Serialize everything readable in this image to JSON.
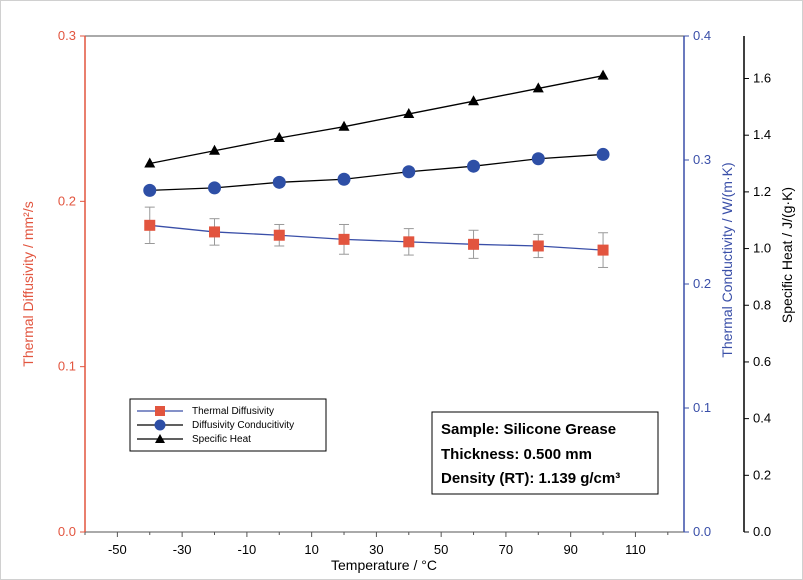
{
  "chart_data": {
    "type": "line",
    "xlabel": "Temperature / °C",
    "x_ticks": [
      "-50",
      "-30",
      "-10",
      "10",
      "30",
      "50",
      "70",
      "90",
      "110"
    ],
    "xlim": [
      -60,
      125
    ],
    "axes": {
      "left": {
        "label": "Thermal Diffusivity / mm²/s",
        "ylim": [
          0,
          0.3
        ],
        "ticks": [
          "0.0",
          "0.1",
          "0.2",
          "0.3"
        ],
        "color": "#e2553f"
      },
      "right1": {
        "label": "Thermal Conductivity / W/(m·K)",
        "ylim": [
          0,
          0.4
        ],
        "ticks": [
          "0.0",
          "0.1",
          "0.2",
          "0.3",
          "0.4"
        ],
        "color": "#3a4fa8"
      },
      "right2": {
        "label": "Specific Heat / J/(g·K)",
        "ylim": [
          0,
          1.75
        ],
        "ticks": [
          "0.0",
          "0.2",
          "0.4",
          "0.6",
          "0.8",
          "1.0",
          "1.2",
          "1.4",
          "1.6"
        ],
        "color": "#000000"
      }
    },
    "x": [
      -40,
      -20,
      0,
      20,
      40,
      60,
      80,
      100
    ],
    "series": [
      {
        "name": "Thermal Diffusivity",
        "axis": "left",
        "marker": "square",
        "color": "#e2553f",
        "line_color": "#3a4fa8",
        "values": [
          0.1855,
          0.1815,
          0.1795,
          0.177,
          0.1755,
          0.174,
          0.173,
          0.1705
        ],
        "errors": [
          0.011,
          0.008,
          0.0065,
          0.009,
          0.008,
          0.0085,
          0.007,
          0.0105
        ]
      },
      {
        "name": "Diffusivity Conducitivity",
        "axis": "right1",
        "marker": "circle",
        "color": "#2e4fa6",
        "line_color": "#000000",
        "values": [
          0.2755,
          0.2775,
          0.282,
          0.2845,
          0.2905,
          0.295,
          0.301,
          0.3045
        ]
      },
      {
        "name": "Specific Heat",
        "axis": "right2",
        "marker": "triangle",
        "color": "#000000",
        "line_color": "#000000",
        "values": [
          1.3,
          1.345,
          1.39,
          1.43,
          1.475,
          1.52,
          1.565,
          1.61
        ]
      }
    ],
    "legend_position": "bottom-left",
    "grid": false
  },
  "info_box": {
    "sample": "Sample: Silicone Grease",
    "thickness": "Thickness: 0.500 mm",
    "density": "Density (RT): 1.139 g/cm³"
  }
}
